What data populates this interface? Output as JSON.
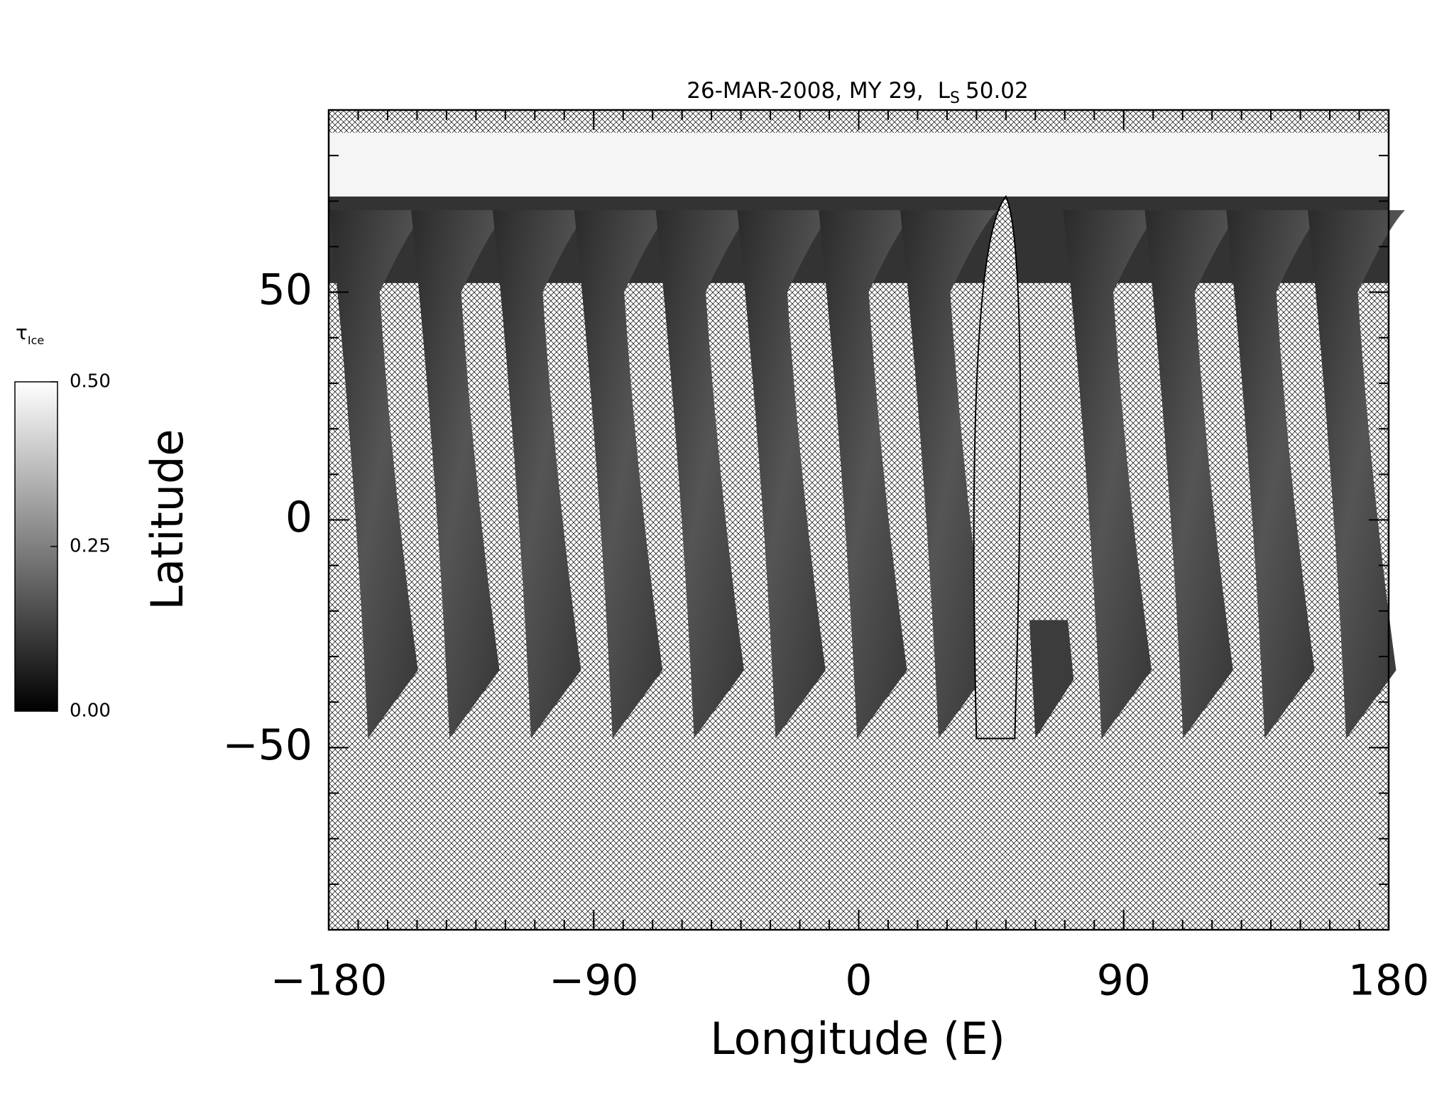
{
  "chart_data": {
    "type": "map",
    "title": "26-MAR-2008, MY 29,",
    "title_symbol": "L",
    "title_subscript": "S",
    "title_value": "50.02",
    "xlabel": "Longitude (E)",
    "ylabel": "Latitude",
    "xlim": [
      -180,
      180
    ],
    "ylim": [
      -90,
      90
    ],
    "xticks": [
      {
        "value": -180,
        "label": "−180"
      },
      {
        "value": -90,
        "label": "−90"
      },
      0,
      90,
      180
    ],
    "yticks": [
      {
        "value": -50,
        "label": "−50"
      },
      0,
      50
    ],
    "xminor": 10,
    "yminor": 10,
    "colorbar": {
      "label": "τ",
      "label_subscript": "Ice",
      "lim": [
        0,
        0.5
      ],
      "ticks": [
        {
          "value": 0,
          "label": "0.00"
        },
        {
          "value": 0.25,
          "label": "0.25"
        },
        {
          "value": 0.5,
          "label": "0.50"
        }
      ]
    }
  }
}
